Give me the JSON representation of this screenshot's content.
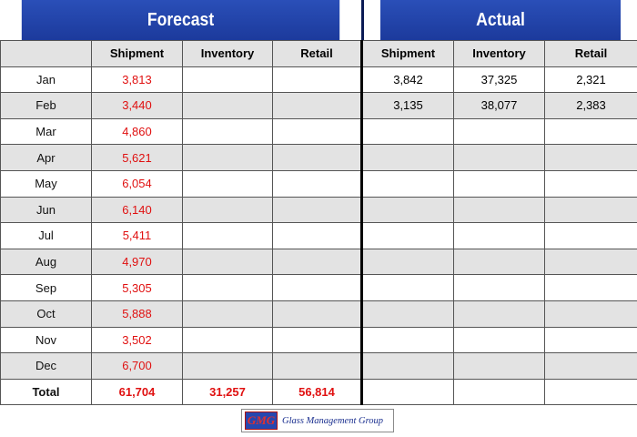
{
  "header": {
    "forecast": "Forecast",
    "actual": "Actual"
  },
  "columns": {
    "forecast": [
      "Shipment",
      "Inventory",
      "Retail"
    ],
    "actual": [
      "Shipment",
      "Inventory",
      "Retail"
    ]
  },
  "rows": [
    {
      "month": "Jan",
      "f_ship": "3,813",
      "f_inv": "",
      "f_ret": "",
      "a_ship": "3,842",
      "a_inv": "37,325",
      "a_ret": "2,321"
    },
    {
      "month": "Feb",
      "f_ship": "3,440",
      "f_inv": "",
      "f_ret": "",
      "a_ship": "3,135",
      "a_inv": "38,077",
      "a_ret": "2,383"
    },
    {
      "month": "Mar",
      "f_ship": "4,860",
      "f_inv": "",
      "f_ret": "",
      "a_ship": "",
      "a_inv": "",
      "a_ret": ""
    },
    {
      "month": "Apr",
      "f_ship": "5,621",
      "f_inv": "",
      "f_ret": "",
      "a_ship": "",
      "a_inv": "",
      "a_ret": ""
    },
    {
      "month": "May",
      "f_ship": "6,054",
      "f_inv": "",
      "f_ret": "",
      "a_ship": "",
      "a_inv": "",
      "a_ret": ""
    },
    {
      "month": "Jun",
      "f_ship": "6,140",
      "f_inv": "",
      "f_ret": "",
      "a_ship": "",
      "a_inv": "",
      "a_ret": ""
    },
    {
      "month": "Jul",
      "f_ship": "5,411",
      "f_inv": "",
      "f_ret": "",
      "a_ship": "",
      "a_inv": "",
      "a_ret": ""
    },
    {
      "month": "Aug",
      "f_ship": "4,970",
      "f_inv": "",
      "f_ret": "",
      "a_ship": "",
      "a_inv": "",
      "a_ret": ""
    },
    {
      "month": "Sep",
      "f_ship": "5,305",
      "f_inv": "",
      "f_ret": "",
      "a_ship": "",
      "a_inv": "",
      "a_ret": ""
    },
    {
      "month": "Oct",
      "f_ship": "5,888",
      "f_inv": "",
      "f_ret": "",
      "a_ship": "",
      "a_inv": "",
      "a_ret": ""
    },
    {
      "month": "Nov",
      "f_ship": "3,502",
      "f_inv": "",
      "f_ret": "",
      "a_ship": "",
      "a_inv": "",
      "a_ret": ""
    },
    {
      "month": "Dec",
      "f_ship": "6,700",
      "f_inv": "",
      "f_ret": "",
      "a_ship": "",
      "a_inv": "",
      "a_ret": ""
    }
  ],
  "total": {
    "label": "Total",
    "f_ship": "61,704",
    "f_inv": "31,257",
    "f_ret": "56,814",
    "a_ship": "",
    "a_inv": "",
    "a_ret": ""
  },
  "logo": {
    "mark": "GMG",
    "text": "Glass Management Group"
  },
  "colors": {
    "header_blue": "#1c3a9c",
    "forecast_value": "#e01010",
    "stripe": "#e3e3e3"
  }
}
